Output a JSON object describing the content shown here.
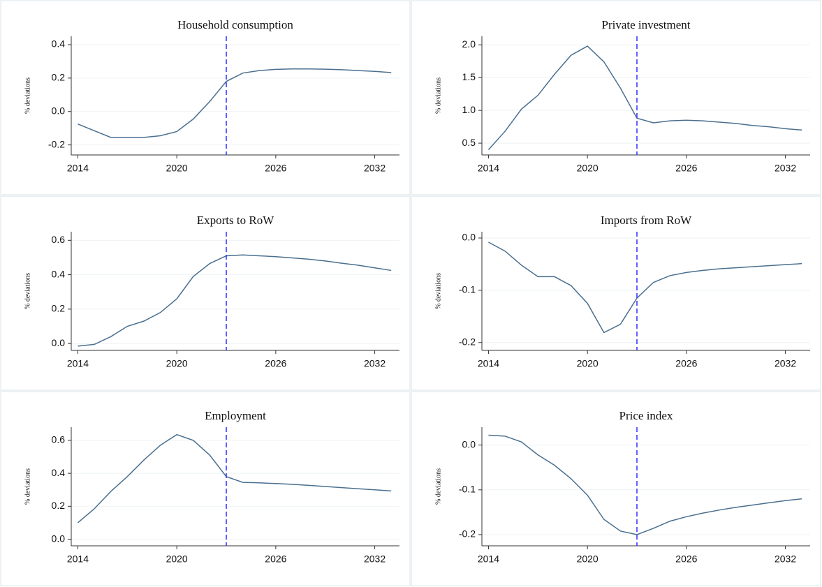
{
  "chart_data": [
    {
      "type": "line",
      "title": "Household consumption",
      "ylabel": "% deviations",
      "x": [
        2014,
        2015,
        2016,
        2017,
        2018,
        2019,
        2020,
        2021,
        2022,
        2023,
        2024,
        2025,
        2026,
        2027,
        2028,
        2029,
        2030,
        2031,
        2032,
        2033
      ],
      "series": [
        {
          "color": "#4a6f8f",
          "values": [
            -0.075,
            -0.115,
            -0.155,
            -0.155,
            -0.155,
            -0.145,
            -0.12,
            -0.045,
            0.06,
            0.18,
            0.23,
            0.245,
            0.252,
            0.255,
            0.255,
            0.253,
            0.25,
            0.245,
            0.24,
            0.233
          ]
        }
      ],
      "xlim": [
        2013.6,
        2033.5
      ],
      "xticks": [
        2014,
        2020,
        2026,
        2032
      ],
      "ylim": [
        -0.26,
        0.45
      ],
      "yticks": [
        {
          "value": -0.2,
          "label": "-0.2"
        },
        {
          "value": 0,
          "label": "0.0"
        },
        0.2,
        0.4
      ],
      "grid": true,
      "vline": 2023,
      "vline_color": "#3b3bff"
    },
    {
      "type": "line",
      "title": "Private investment",
      "ylabel": "% deviations",
      "x": [
        2014,
        2015,
        2016,
        2017,
        2018,
        2019,
        2020,
        2021,
        2022,
        2023,
        2024,
        2025,
        2026,
        2027,
        2028,
        2029,
        2030,
        2031,
        2032,
        2033
      ],
      "series": [
        {
          "color": "#4a6f8f",
          "values": [
            0.4,
            0.68,
            1.02,
            1.23,
            1.55,
            1.84,
            1.98,
            1.74,
            1.34,
            0.88,
            0.81,
            0.84,
            0.85,
            0.84,
            0.82,
            0.8,
            0.77,
            0.75,
            0.72,
            0.7
          ]
        }
      ],
      "xlim": [
        2013.6,
        2033.5
      ],
      "xticks": [
        2014,
        2020,
        2026,
        2032
      ],
      "ylim": [
        0.32,
        2.13
      ],
      "yticks": [
        0.5,
        {
          "value": 1,
          "label": "1.0"
        },
        1.5,
        {
          "value": 2,
          "label": "2.0"
        }
      ],
      "grid": true,
      "vline": 2023,
      "vline_color": "#3b3bff"
    },
    {
      "type": "line",
      "title": "Exports to RoW",
      "ylabel": "% deviations",
      "x": [
        2014,
        2015,
        2016,
        2017,
        2018,
        2019,
        2020,
        2021,
        2022,
        2023,
        2024,
        2025,
        2026,
        2027,
        2028,
        2029,
        2030,
        2031,
        2032,
        2033
      ],
      "series": [
        {
          "color": "#4a6f8f",
          "values": [
            -0.015,
            -0.005,
            0.04,
            0.1,
            0.13,
            0.18,
            0.26,
            0.39,
            0.465,
            0.51,
            0.515,
            0.51,
            0.505,
            0.498,
            0.49,
            0.48,
            0.467,
            0.455,
            0.44,
            0.425
          ]
        }
      ],
      "xlim": [
        2013.6,
        2033.5
      ],
      "xticks": [
        2014,
        2020,
        2026,
        2032
      ],
      "ylim": [
        -0.04,
        0.65
      ],
      "yticks": [
        {
          "value": 0,
          "label": "0.0"
        },
        0.2,
        0.4,
        0.6
      ],
      "grid": true,
      "vline": 2023,
      "vline_color": "#3b3bff"
    },
    {
      "type": "line",
      "title": "Imports from RoW",
      "ylabel": "% deviations",
      "x": [
        2014,
        2015,
        2016,
        2017,
        2018,
        2019,
        2020,
        2021,
        2022,
        2023,
        2024,
        2025,
        2026,
        2027,
        2028,
        2029,
        2030,
        2031,
        2032,
        2033
      ],
      "series": [
        {
          "color": "#4a6f8f",
          "values": [
            -0.008,
            -0.025,
            -0.052,
            -0.074,
            -0.074,
            -0.091,
            -0.125,
            -0.181,
            -0.165,
            -0.115,
            -0.085,
            -0.072,
            -0.066,
            -0.062,
            -0.059,
            -0.057,
            -0.055,
            -0.053,
            -0.051,
            -0.049
          ]
        }
      ],
      "xlim": [
        2013.6,
        2033.5
      ],
      "xticks": [
        2014,
        2020,
        2026,
        2032
      ],
      "ylim": [
        -0.215,
        0.012
      ],
      "yticks": [
        -0.2,
        -0.1,
        {
          "value": 0,
          "label": "0.0"
        }
      ],
      "grid": true,
      "vline": 2023,
      "vline_color": "#3b3bff"
    },
    {
      "type": "line",
      "title": "Employment",
      "ylabel": "% deviations",
      "x": [
        2014,
        2015,
        2016,
        2017,
        2018,
        2019,
        2020,
        2021,
        2022,
        2023,
        2024,
        2025,
        2026,
        2027,
        2028,
        2029,
        2030,
        2031,
        2032,
        2033
      ],
      "series": [
        {
          "color": "#4a6f8f",
          "values": [
            0.1,
            0.185,
            0.29,
            0.38,
            0.48,
            0.57,
            0.635,
            0.6,
            0.51,
            0.38,
            0.345,
            0.342,
            0.338,
            0.333,
            0.327,
            0.32,
            0.313,
            0.306,
            0.3,
            0.293
          ]
        }
      ],
      "xlim": [
        2013.6,
        2033.5
      ],
      "xticks": [
        2014,
        2020,
        2026,
        2032
      ],
      "ylim": [
        -0.04,
        0.68
      ],
      "yticks": [
        {
          "value": 0,
          "label": "0.0"
        },
        0.2,
        0.4,
        0.6
      ],
      "grid": true,
      "vline": 2023,
      "vline_color": "#3b3bff"
    },
    {
      "type": "line",
      "title": "Price index",
      "ylabel": "% deviations",
      "x": [
        2014,
        2015,
        2016,
        2017,
        2018,
        2019,
        2020,
        2021,
        2022,
        2023,
        2024,
        2025,
        2026,
        2027,
        2028,
        2029,
        2030,
        2031,
        2032,
        2033
      ],
      "series": [
        {
          "color": "#4a6f8f",
          "values": [
            0.022,
            0.02,
            0.007,
            -0.022,
            -0.045,
            -0.075,
            -0.112,
            -0.166,
            -0.192,
            -0.2,
            -0.186,
            -0.17,
            -0.16,
            -0.152,
            -0.145,
            -0.139,
            -0.134,
            -0.129,
            -0.124,
            -0.12
          ]
        }
      ],
      "xlim": [
        2013.6,
        2033.5
      ],
      "xticks": [
        2014,
        2020,
        2026,
        2032
      ],
      "ylim": [
        -0.225,
        0.04
      ],
      "yticks": [
        -0.2,
        -0.1,
        {
          "value": 0,
          "label": "0.0"
        }
      ],
      "grid": true,
      "vline": 2023,
      "vline_color": "#3b3bff"
    }
  ]
}
